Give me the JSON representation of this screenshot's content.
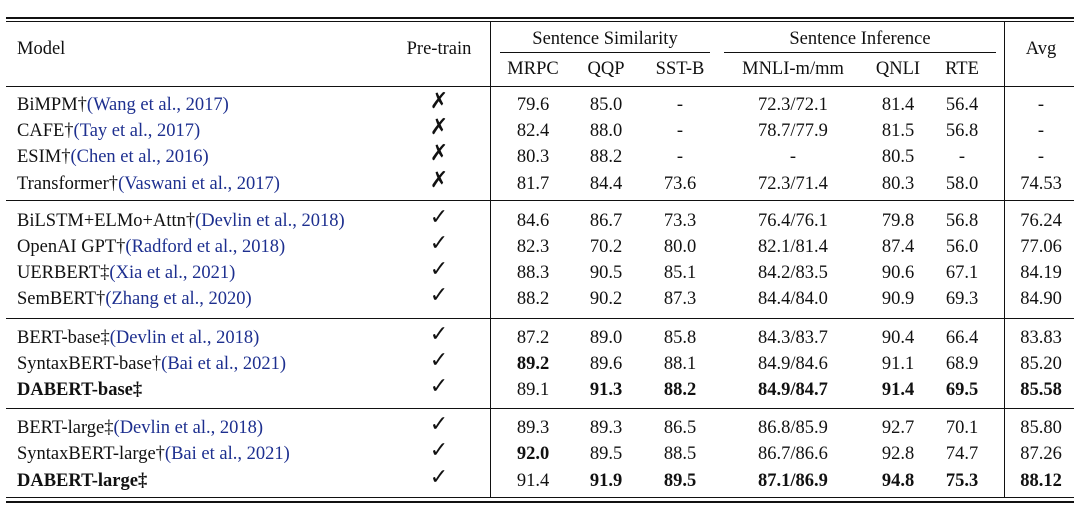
{
  "header": {
    "model": "Model",
    "pretrain": "Pre-train",
    "group_similarity": "Sentence Similarity",
    "group_inference": "Sentence Inference",
    "avg": "Avg",
    "columns": [
      "MRPC",
      "QQP",
      "SST-B",
      "MNLI-m/mm",
      "QNLI",
      "RTE"
    ]
  },
  "marks": {
    "yes": "✓",
    "no": "✗"
  },
  "rows": [
    {
      "name": "BiMPM†",
      "ref": "(Wang et al., 2017)",
      "mark": "no",
      "vals": [
        "79.6",
        "85.0",
        "-",
        "72.3/72.1",
        "81.4",
        "56.4",
        "-"
      ]
    },
    {
      "name": "CAFE†",
      "ref": "(Tay et al., 2017)",
      "mark": "no",
      "vals": [
        "82.4",
        "88.0",
        "-",
        "78.7/77.9",
        "81.5",
        "56.8",
        "-"
      ]
    },
    {
      "name": "ESIM†",
      "ref": "(Chen et al., 2016)",
      "mark": "no",
      "vals": [
        "80.3",
        "88.2",
        "-",
        "-",
        "80.5",
        "-",
        "-"
      ]
    },
    {
      "name": "Transformer†",
      "ref": "(Vaswani et al., 2017)",
      "mark": "no",
      "vals": [
        "81.7",
        "84.4",
        "73.6",
        "72.3/71.4",
        "80.3",
        "58.0",
        "74.53"
      ]
    },
    {
      "name": "BiLSTM+ELMo+Attn†",
      "ref": "(Devlin et al., 2018)",
      "mark": "yes",
      "vals": [
        "84.6",
        "86.7",
        "73.3",
        "76.4/76.1",
        "79.8",
        "56.8",
        "76.24"
      ]
    },
    {
      "name": "OpenAI GPT†",
      "ref": "(Radford et al., 2018)",
      "mark": "yes",
      "vals": [
        "82.3",
        "70.2",
        "80.0",
        "82.1/81.4",
        "87.4",
        "56.0",
        "77.06"
      ]
    },
    {
      "name": "UERBERT‡",
      "ref": "(Xia et al., 2021)",
      "mark": "yes",
      "vals": [
        "88.3",
        "90.5",
        "85.1",
        "84.2/83.5",
        "90.6",
        "67.1",
        "84.19"
      ]
    },
    {
      "name": "SemBERT†",
      "ref": "(Zhang et al., 2020)",
      "mark": "yes",
      "vals": [
        "88.2",
        "90.2",
        "87.3",
        "84.4/84.0",
        "90.9",
        "69.3",
        "84.90"
      ]
    },
    {
      "name": "BERT-base‡",
      "ref": "(Devlin et al., 2018)",
      "mark": "yes",
      "vals": [
        "87.2",
        "89.0",
        "85.8",
        "84.3/83.7",
        "90.4",
        "66.4",
        "83.83"
      ]
    },
    {
      "name": "SyntaxBERT-base†",
      "ref": "(Bai et al., 2021)",
      "mark": "yes",
      "vals": [
        "89.2",
        "89.6",
        "88.1",
        "84.9/84.6",
        "91.1",
        "68.9",
        "85.20"
      ]
    },
    {
      "name": "DABERT-base‡",
      "ref": "",
      "mark": "yes",
      "vals": [
        "89.1",
        "91.3",
        "88.2",
        "84.9/84.7",
        "91.4",
        "69.5",
        "85.58"
      ]
    },
    {
      "name": "BERT-large‡",
      "ref": "(Devlin et al., 2018)",
      "mark": "yes",
      "vals": [
        "89.3",
        "89.3",
        "86.5",
        "86.8/85.9",
        "92.7",
        "70.1",
        "85.80"
      ]
    },
    {
      "name": "SyntaxBERT-large†",
      "ref": "(Bai et al., 2021)",
      "mark": "yes",
      "vals": [
        "92.0",
        "89.5",
        "88.5",
        "86.7/86.6",
        "92.8",
        "74.7",
        "87.26"
      ]
    },
    {
      "name": "DABERT-large‡",
      "ref": "",
      "mark": "yes",
      "vals": [
        "91.4",
        "91.9",
        "89.5",
        "87.1/86.9",
        "94.8",
        "75.3",
        "88.12"
      ]
    }
  ]
}
